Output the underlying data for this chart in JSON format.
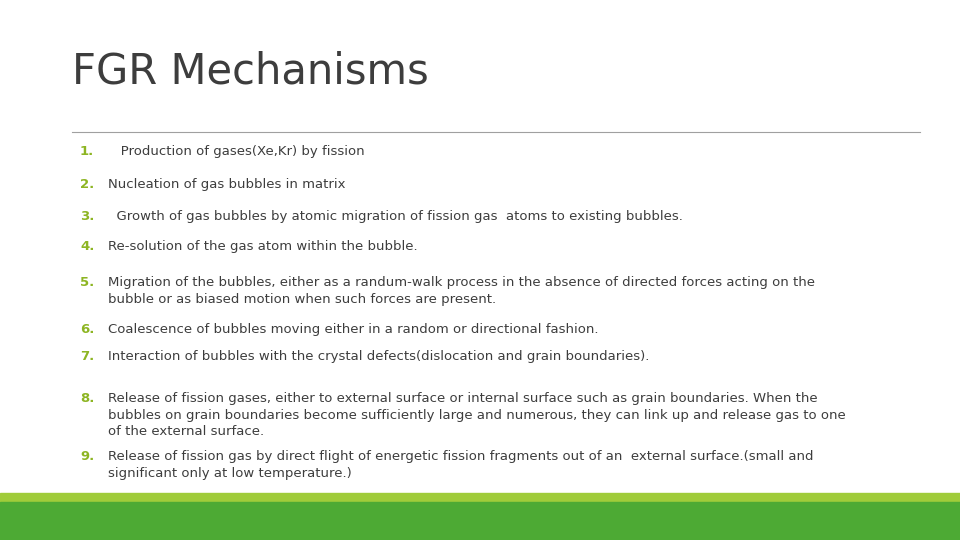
{
  "title": "FGR Mechanisms",
  "title_color": "#3d3d3d",
  "title_fontsize": 30,
  "background_color": "#ffffff",
  "number_color": "#8db523",
  "text_color": "#3d3d3d",
  "separator_color": "#a0a0a0",
  "bottom_bar_light": "#a0cc3a",
  "bottom_bar_dark": "#4daa34",
  "items": [
    {
      "num": "1.",
      "text": "   Production of gases(Xe,Kr) by fission"
    },
    {
      "num": "2.",
      "text": "Nucleation of gas bubbles in matrix"
    },
    {
      "num": "3.",
      "text": "  Growth of gas bubbles by atomic migration of fission gas  atoms to existing bubbles."
    },
    {
      "num": "4.",
      "text": "Re-solution of the gas atom within the bubble."
    },
    {
      "num": "5.",
      "text": "Migration of the bubbles, either as a randum-walk process in the absence of directed forces acting on the\nbubble or as biased motion when such forces are present."
    },
    {
      "num": "6.",
      "text": "Coalescence of bubbles moving either in a random or directional fashion."
    },
    {
      "num": "7.",
      "text": "Interaction of bubbles with the crystal defects(dislocation and grain boundaries)."
    },
    {
      "num": "8.",
      "text": "Release of fission gases, either to external surface or internal surface such as grain boundaries. When the\nbubbles on grain boundaries become sufficiently large and numerous, they can link up and release gas to one\nof the external surface."
    },
    {
      "num": "9.",
      "text": "Release of fission gas by direct flight of energetic fission fragments out of an  external surface.(small and\nsignificant only at low temperature.)"
    }
  ],
  "item_fontsize": 9.5,
  "num_fontsize": 9.5
}
